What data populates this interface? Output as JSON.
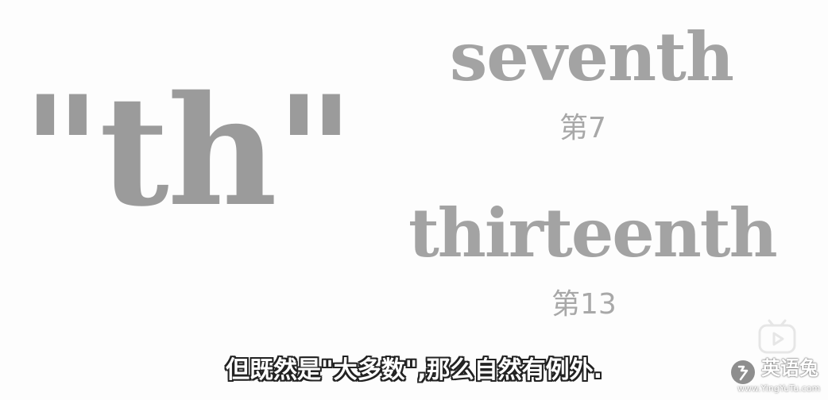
{
  "slide": {
    "suffix": "\"th\"",
    "examples": [
      {
        "word": "seventh",
        "translation": "第7"
      },
      {
        "word": "thirteenth",
        "translation": "第13"
      }
    ]
  },
  "subtitle": "但既然是\"大多数\",那么自然有例外.",
  "watermark": {
    "name": "英语兔",
    "url": "www.YingYuTu.com",
    "icon": "rabbit-logo-icon"
  },
  "player_logo": {
    "icon": "bilibili-tv-icon"
  },
  "colors": {
    "text_gray": "#9b9b9b",
    "background": "#fdfdfd",
    "subtitle_fill": "#ffffff",
    "subtitle_outline": "#222222"
  }
}
